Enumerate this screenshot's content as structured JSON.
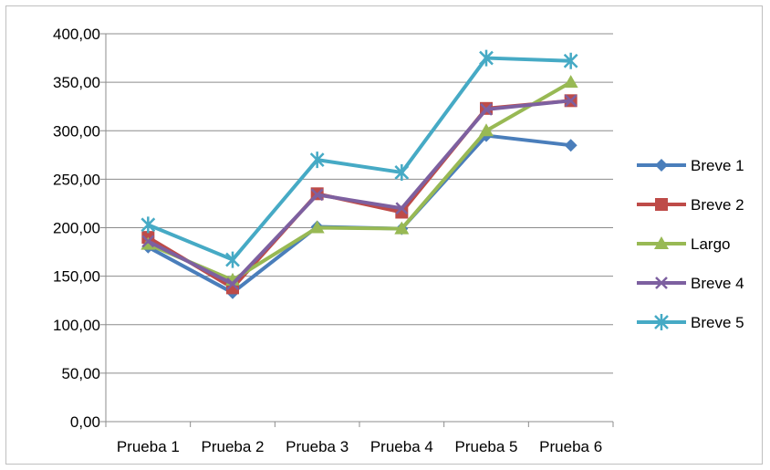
{
  "chart_data": {
    "type": "line",
    "title": "",
    "xlabel": "",
    "ylabel": "",
    "categories": [
      "Prueba 1",
      "Prueba 2",
      "Prueba 3",
      "Prueba 4",
      "Prueba 5",
      "Prueba 6"
    ],
    "ylim": [
      0,
      400
    ],
    "yticks": [
      "0,00",
      "50,00",
      "100,00",
      "150,00",
      "200,00",
      "250,00",
      "300,00",
      "350,00",
      "400,00"
    ],
    "grid": true,
    "legend_position": "right",
    "series": [
      {
        "name": "Breve 1",
        "color": "#4a7ebb",
        "marker": "diamond",
        "values": [
          180,
          133,
          201,
          199,
          295,
          285
        ]
      },
      {
        "name": "Breve 2",
        "color": "#be4b48",
        "marker": "square",
        "values": [
          190,
          138,
          235,
          216,
          323,
          331
        ]
      },
      {
        "name": "Largo",
        "color": "#98b954",
        "marker": "triangle",
        "values": [
          183,
          146,
          200,
          199,
          300,
          350
        ]
      },
      {
        "name": "Breve 4",
        "color": "#7d60a0",
        "marker": "x",
        "values": [
          186,
          142,
          234,
          220,
          322,
          331
        ]
      },
      {
        "name": "Breve 5",
        "color": "#46aac5",
        "marker": "star",
        "values": [
          203,
          167,
          270,
          257,
          375,
          372
        ]
      }
    ]
  }
}
